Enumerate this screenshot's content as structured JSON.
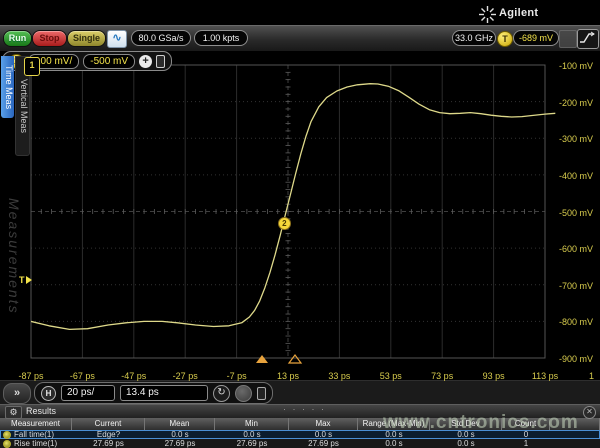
{
  "brand": {
    "name": "Agilent"
  },
  "toolbar": {
    "run_label": "Run",
    "stop_label": "Stop",
    "single_label": "Single",
    "sample_rate": "80.0 GSa/s",
    "memory_depth": "1.00 kpts",
    "bandwidth": "33.0 GHz",
    "trigger_badge": "T",
    "trigger_level": "-689 mV"
  },
  "channel_bar": {
    "channel_badge": "1",
    "scale": "100 mV/",
    "offset": "-500 mV",
    "add_label": "+"
  },
  "sidebar": {
    "tabs": [
      {
        "label": "Time Meas",
        "active": true
      },
      {
        "label": "Vertical Meas",
        "active": false
      }
    ],
    "watermark": "Measurements"
  },
  "plot": {
    "voltage_labels": [
      "-100 mV",
      "-200 mV",
      "-300 mV",
      "-400 mV",
      "-500 mV",
      "-600 mV",
      "-700 mV",
      "-800 mV",
      "-900 mV"
    ],
    "time_labels": [
      "-87 ps",
      "-67 ps",
      "-47 ps",
      "-27 ps",
      "-7 ps",
      "13 ps",
      "33 ps",
      "53 ps",
      "73 ps",
      "93 ps",
      "113 ps"
    ],
    "right_edge_channel_label": "1",
    "ground_marker_label": "1",
    "trigger_marker_label": "T",
    "waveform_marker_label": "2"
  },
  "waveform": {
    "type": "line",
    "color": "#ded98a",
    "units": {
      "x": "ps",
      "y": "mV"
    },
    "points": [
      [
        -87,
        -800
      ],
      [
        -80,
        -812
      ],
      [
        -72,
        -822
      ],
      [
        -65,
        -820
      ],
      [
        -57,
        -810
      ],
      [
        -50,
        -804
      ],
      [
        -43,
        -800
      ],
      [
        -36,
        -800
      ],
      [
        -30,
        -804
      ],
      [
        -23,
        -810
      ],
      [
        -16,
        -814
      ],
      [
        -10,
        -812
      ],
      [
        -5,
        -804
      ],
      [
        -2,
        -788
      ],
      [
        0,
        -770
      ],
      [
        2,
        -744
      ],
      [
        4,
        -708
      ],
      [
        6,
        -666
      ],
      [
        8,
        -618
      ],
      [
        10,
        -564
      ],
      [
        12,
        -508
      ],
      [
        14,
        -452
      ],
      [
        16,
        -396
      ],
      [
        18,
        -342
      ],
      [
        20,
        -294
      ],
      [
        22,
        -254
      ],
      [
        25,
        -214
      ],
      [
        28,
        -189
      ],
      [
        32,
        -171
      ],
      [
        36,
        -160
      ],
      [
        40,
        -154
      ],
      [
        45,
        -151
      ],
      [
        48,
        -152
      ],
      [
        52,
        -158
      ],
      [
        56,
        -170
      ],
      [
        60,
        -188
      ],
      [
        64,
        -207
      ],
      [
        68,
        -222
      ],
      [
        72,
        -230
      ],
      [
        76,
        -233
      ],
      [
        80,
        -232
      ],
      [
        84,
        -230
      ],
      [
        88,
        -233
      ],
      [
        92,
        -237
      ],
      [
        96,
        -240
      ],
      [
        100,
        -242
      ],
      [
        104,
        -241
      ],
      [
        108,
        -238
      ],
      [
        113,
        -234
      ],
      [
        117,
        -232
      ]
    ]
  },
  "hbar": {
    "expand_label": "»",
    "h_badge": "H",
    "timebase": "20 ps/",
    "delay": "13.4 ps"
  },
  "results": {
    "title": "Results",
    "drag_dots": "· · · · ·",
    "columns": [
      "Measurement",
      "Current",
      "Mean",
      "Min",
      "Max",
      "Range (Max-Min)",
      "Std Dev",
      "Count"
    ],
    "rows": [
      {
        "name": "Fall time(1)",
        "selected": true,
        "values": [
          "Edge?",
          "0.0 s",
          "0.0 s",
          "0.0 s",
          "0.0 s",
          "0.0 s",
          "0"
        ]
      },
      {
        "name": "Rise time(1)",
        "selected": false,
        "values": [
          "27.69 ps",
          "27.69 ps",
          "27.69 ps",
          "27.69 ps",
          "0.0 s",
          "0.0 s",
          "1"
        ]
      }
    ]
  },
  "watermark_text": "www.cntronics.com",
  "colors": {
    "waveform_yellow": "#ded98a",
    "label_yellow": "#d9cd4e",
    "trigger_orange": "#e8a33d",
    "tab_blue": "#2f7fd6",
    "selected_row_border": "#4a8fd4"
  }
}
